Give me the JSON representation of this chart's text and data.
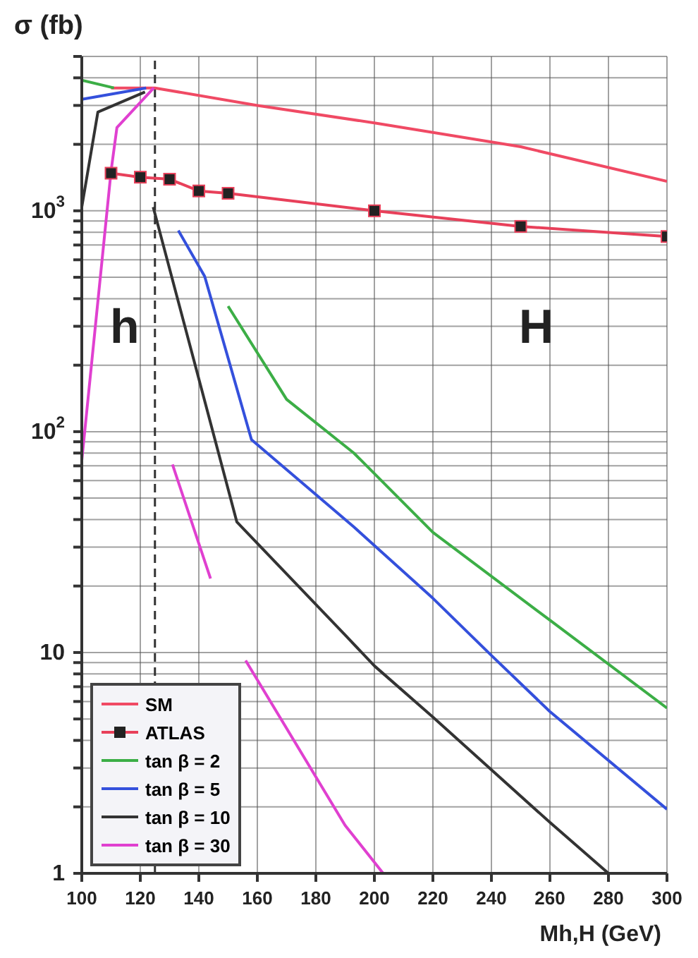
{
  "chart_data": {
    "type": "line",
    "xlabel": "Mh,H (GeV)",
    "ylabel": "σ (fb)",
    "log": "y",
    "xlim": [
      100,
      300
    ],
    "xticks": [
      100,
      120,
      140,
      160,
      180,
      200,
      220,
      240,
      260,
      280,
      300
    ],
    "ylim": [
      1,
      5000
    ],
    "yticks": [
      {
        "value": 1,
        "label": "1"
      },
      {
        "value": 2,
        "label": null
      },
      {
        "value": 3,
        "label": null
      },
      {
        "value": 4,
        "label": null
      },
      {
        "value": 5,
        "label": null
      },
      {
        "value": 6,
        "label": null
      },
      {
        "value": 7,
        "label": null
      },
      {
        "value": 8,
        "label": null
      },
      {
        "value": 9,
        "label": null
      },
      {
        "value": 10,
        "label": "10"
      },
      {
        "value": 20,
        "label": null
      },
      {
        "value": 30,
        "label": null
      },
      {
        "value": 40,
        "label": null
      },
      {
        "value": 50,
        "label": null
      },
      {
        "value": 60,
        "label": null
      },
      {
        "value": 70,
        "label": null
      },
      {
        "value": 80,
        "label": null
      },
      {
        "value": 90,
        "label": null
      },
      {
        "value": 100,
        "label": "10$^{2}$"
      },
      {
        "value": 200,
        "label": null
      },
      {
        "value": 300,
        "label": null
      },
      {
        "value": 400,
        "label": null
      },
      {
        "value": 500,
        "label": null
      },
      {
        "value": 600,
        "label": null
      },
      {
        "value": 700,
        "label": null
      },
      {
        "value": 800,
        "label": null
      },
      {
        "value": 900,
        "label": null
      },
      {
        "value": 1000,
        "label": "10$^{3}$"
      },
      {
        "value": 2000,
        "label": null
      },
      {
        "value": 3000,
        "label": null
      },
      {
        "value": 4000,
        "label": null
      },
      {
        "value": 5000,
        "label": null
      }
    ],
    "grid": true,
    "legend": "bottom left",
    "series": [
      {
        "name": "SM",
        "color": "#f04a64",
        "x": [
          110,
          125,
          160,
          200,
          250,
          300
        ],
        "values": [
          3600,
          3600,
          3000,
          2500,
          1950,
          1360
        ]
      },
      {
        "name": "ATLAS",
        "color": "#e8405a",
        "marker": "square",
        "x": [
          110,
          120,
          130,
          140,
          150,
          200,
          250,
          300
        ],
        "values": [
          1480,
          1420,
          1390,
          1230,
          1200,
          1000,
          850,
          765
        ]
      },
      {
        "name": "tan β = 2",
        "color": "#3cae46",
        "x": [
          100,
          111,
          130,
          150,
          170,
          193,
          220,
          260,
          300
        ],
        "values": [
          3900,
          3600,
          null,
          370,
          140,
          80,
          35,
          14,
          5.6
        ]
      },
      {
        "name": "tan β = 5",
        "color": "#3450dc",
        "x": [
          100,
          122,
          127,
          133,
          142,
          158,
          193,
          220,
          240,
          260,
          300
        ],
        "values": [
          3200,
          3600,
          null,
          815,
          505,
          92,
          37,
          17.6,
          9.7,
          5.4,
          1.95
        ]
      },
      {
        "name": "tan β = 10",
        "color": "#333333",
        "x": [
          100,
          105.5,
          121.6,
          123,
          124.4,
          153,
          190,
          200,
          220,
          260,
          280
        ],
        "values": [
          1040,
          2800,
          3450,
          null,
          1040,
          39,
          12,
          8.7,
          5.1,
          1.7,
          1.0
        ]
      },
      {
        "name": "tan β = 30",
        "color": "#e040d0",
        "x": [
          100,
          110,
          112,
          124.6,
          128,
          131,
          144,
          150,
          156,
          190,
          203
        ],
        "values": [
          74,
          1510,
          2380,
          3600,
          null,
          71,
          21.6,
          null,
          9.2,
          1.65,
          1.0
        ]
      }
    ],
    "ref_lines": [
      {
        "axis": "x",
        "value": 125,
        "label": null,
        "color": "#333333",
        "line_style": "dashed"
      }
    ],
    "annotations": [
      "h",
      "H"
    ]
  }
}
